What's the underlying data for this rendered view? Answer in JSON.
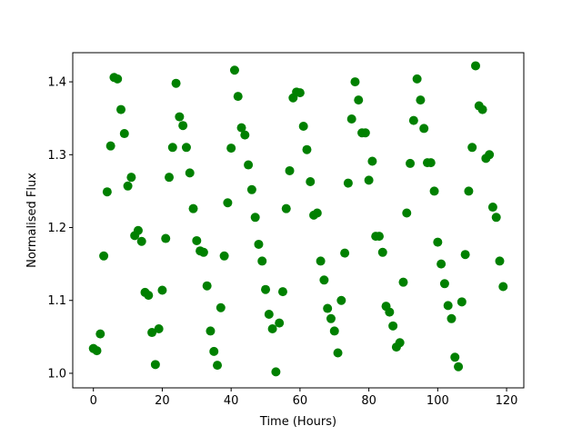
{
  "chart_data": {
    "type": "scatter",
    "title": "",
    "xlabel": "Time (Hours)",
    "ylabel": "Normalised Flux",
    "xlim": [
      -6,
      125
    ],
    "ylim": [
      0.98,
      1.44
    ],
    "xticks": [
      0,
      20,
      40,
      60,
      80,
      100,
      120
    ],
    "xtick_labels": [
      "0",
      "20",
      "40",
      "60",
      "80",
      "100",
      "120"
    ],
    "yticks": [
      1.0,
      1.1,
      1.2,
      1.3,
      1.4
    ],
    "ytick_labels": [
      "1.0",
      "1.1",
      "1.2",
      "1.3",
      "1.4"
    ],
    "grid": false,
    "marker_color": "#008000",
    "series": [
      {
        "x": [
          0,
          1,
          2,
          3,
          4,
          5,
          6,
          7,
          8,
          9,
          10,
          11,
          12,
          13,
          14,
          15,
          16,
          17,
          18,
          19,
          20,
          21,
          22,
          23,
          24,
          25,
          26,
          27,
          28,
          29,
          30,
          31,
          32,
          33,
          34,
          35,
          36,
          37,
          38,
          39,
          40,
          41,
          42,
          43,
          44,
          45,
          46,
          47,
          48,
          49,
          50,
          51,
          52,
          53,
          54,
          55,
          56,
          57,
          58,
          59,
          60,
          61,
          62,
          63,
          64,
          65,
          66,
          67,
          68,
          69,
          70,
          71,
          72,
          73,
          74,
          75,
          76,
          77,
          78,
          79,
          80,
          81,
          82,
          83,
          84,
          85,
          86,
          87,
          88,
          89,
          90,
          91,
          92,
          93,
          94,
          95,
          96,
          97,
          98,
          99,
          100,
          101,
          102,
          103,
          104,
          105,
          106,
          107,
          108,
          109,
          110,
          111,
          112,
          113,
          114,
          115,
          116,
          117,
          118,
          119
        ],
        "y": [
          1.034,
          1.031,
          1.054,
          1.161,
          1.249,
          1.312,
          1.406,
          1.404,
          1.362,
          1.329,
          1.257,
          1.269,
          1.189,
          1.196,
          1.181,
          1.111,
          1.107,
          1.056,
          1.012,
          1.061,
          1.114,
          1.185,
          1.269,
          1.31,
          1.398,
          1.352,
          1.34,
          1.31,
          1.275,
          1.226,
          1.182,
          1.168,
          1.166,
          1.12,
          1.058,
          1.03,
          1.011,
          1.09,
          1.161,
          1.234,
          1.309,
          1.416,
          1.38,
          1.337,
          1.327,
          1.286,
          1.252,
          1.214,
          1.177,
          1.154,
          1.115,
          1.081,
          1.061,
          1.002,
          1.069,
          1.112,
          1.226,
          1.278,
          1.378,
          1.386,
          1.385,
          1.339,
          1.307,
          1.263,
          1.217,
          1.22,
          1.154,
          1.128,
          1.089,
          1.075,
          1.058,
          1.028,
          1.1,
          1.165,
          1.261,
          1.349,
          1.4,
          1.375,
          1.33,
          1.33,
          1.265,
          1.291,
          1.188,
          1.188,
          1.166,
          1.092,
          1.084,
          1.065,
          1.036,
          1.042,
          1.125,
          1.22,
          1.288,
          1.347,
          1.404,
          1.375,
          1.336,
          1.289,
          1.289,
          1.25,
          1.18,
          1.15,
          1.123,
          1.093,
          1.075,
          1.022,
          1.009,
          1.098,
          1.163,
          1.25,
          1.31,
          1.422,
          1.367,
          1.362,
          1.295,
          1.3,
          1.228,
          1.214,
          1.154,
          1.119
        ]
      }
    ]
  }
}
